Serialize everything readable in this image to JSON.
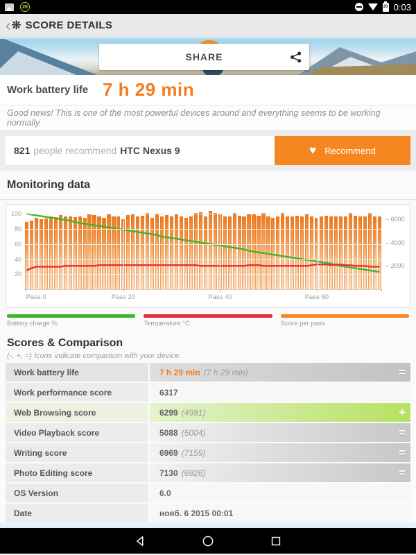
{
  "status_bar": {
    "time": "0:03",
    "battery_badge": "20",
    "battery_level": "20"
  },
  "header": {
    "back_glyph": "‹",
    "logo_glyph": "❋",
    "title": "SCORE DETAILS"
  },
  "banner": {
    "share_label": "SHARE"
  },
  "result": {
    "label": "Work battery life",
    "value": "7 h 29 min"
  },
  "message": "Good news! This is one of the most powerful devices around and everything seems to be working normally.",
  "recommend": {
    "count": "821",
    "middle": "people recommend",
    "device": "HTC Nexus 9",
    "heart_glyph": "♥",
    "button_label": "Recommend"
  },
  "monitoring": {
    "title": "Monitoring data"
  },
  "chart_data": {
    "type": "bar",
    "title": "Monitoring data",
    "x_ticks": [
      {
        "label": "Pass 0",
        "pass": 0
      },
      {
        "label": "Pass 20",
        "pass": 20
      },
      {
        "label": "Pass 40",
        "pass": 40
      },
      {
        "label": "Pass 60",
        "pass": 60
      }
    ],
    "left_axis": {
      "ticks": [
        20,
        40,
        60,
        80,
        100
      ],
      "max": 104
    },
    "right_axis": {
      "ticks": [
        2000,
        4000,
        6000
      ],
      "max": 6700
    },
    "num_passes": 74,
    "series": [
      {
        "name": "Battery charge %",
        "type": "line",
        "axis": "left",
        "color": "#3cb72c",
        "values": [
          100,
          99,
          98,
          97,
          96,
          95,
          94,
          93,
          92,
          91,
          89,
          88,
          87,
          86,
          85,
          84,
          83,
          82,
          81,
          80,
          79,
          78,
          77,
          76,
          75,
          74,
          73,
          72,
          70,
          69,
          68,
          67,
          66,
          65,
          64,
          63,
          62,
          61,
          60,
          59,
          58,
          57,
          56,
          55,
          54,
          53,
          51,
          50,
          49,
          48,
          47,
          46,
          45,
          44,
          43,
          42,
          41,
          40,
          39,
          38,
          37,
          36,
          35,
          34,
          32,
          31,
          30,
          29,
          28,
          27,
          26,
          25,
          24,
          23
        ]
      },
      {
        "name": "Temperature °C",
        "type": "line",
        "axis": "left",
        "color": "#e62f3e",
        "values": [
          25,
          28,
          30,
          30,
          30,
          30,
          30,
          30,
          31,
          31,
          31,
          31,
          31,
          31,
          31,
          32,
          32,
          32,
          32,
          32,
          32,
          32,
          32,
          32,
          32,
          32,
          32,
          32,
          32,
          32,
          32,
          32,
          32,
          32,
          32,
          32,
          31,
          31,
          31,
          31,
          31,
          31,
          31,
          31,
          31,
          31,
          32,
          32,
          32,
          31,
          31,
          31,
          31,
          31,
          31,
          31,
          31,
          31,
          31,
          32,
          33,
          33,
          33,
          32,
          33,
          33,
          32,
          32,
          31,
          31,
          31,
          30,
          30,
          30
        ]
      },
      {
        "name": "Score per pass",
        "type": "bar",
        "axis": "right",
        "color": "#f1801f",
        "values": [
          5750,
          5850,
          6100,
          6000,
          6050,
          6200,
          6150,
          6350,
          6200,
          6250,
          6150,
          6200,
          6100,
          6400,
          6350,
          6200,
          6100,
          6450,
          6250,
          6200,
          6000,
          6350,
          6400,
          6200,
          6300,
          6500,
          6100,
          6400,
          6200,
          6350,
          6250,
          6450,
          6200,
          6100,
          6250,
          6550,
          6600,
          6200,
          6700,
          6500,
          6400,
          6200,
          6250,
          6550,
          6300,
          6200,
          6450,
          6400,
          6300,
          6500,
          6200,
          6100,
          6200,
          6500,
          6250,
          6200,
          6300,
          6250,
          6400,
          6200,
          6100,
          6200,
          6300,
          6250,
          6200,
          6250,
          6200,
          6500,
          6300,
          6250,
          6200,
          6550,
          6250,
          6200
        ]
      }
    ],
    "legend": [
      {
        "label": "Battery charge %",
        "color": "#3cb72c"
      },
      {
        "label": "Temperature °C",
        "color": "#e62f3e"
      },
      {
        "label": "Score per pass",
        "color": "#f6861f"
      }
    ]
  },
  "comparison": {
    "title": "Scores & Comparison",
    "subtitle": "(-, +, =) Icons indicate comparison with your device.",
    "rows": [
      {
        "label": "Work battery life",
        "value": "7 h 29 min",
        "sub": "(7 h 29 min)",
        "compare": "=",
        "row_style": "battery",
        "value_style": "orangeval"
      },
      {
        "label": "Work performance score",
        "value": "6317",
        "sub": "",
        "compare": "",
        "row_style": "plain",
        "value_style": ""
      },
      {
        "label": "Web Browsing score",
        "value": "6299",
        "sub": "(4981)",
        "compare": "+",
        "row_style": "green",
        "value_style": ""
      },
      {
        "label": "Video Playback score",
        "value": "5088",
        "sub": "(5004)",
        "compare": "=",
        "row_style": "gray",
        "value_style": ""
      },
      {
        "label": "Writing score",
        "value": "6969",
        "sub": "(7159)",
        "compare": "=",
        "row_style": "gray",
        "value_style": ""
      },
      {
        "label": "Photo Editing score",
        "value": "7130",
        "sub": "(6926)",
        "compare": "=",
        "row_style": "gray",
        "value_style": ""
      },
      {
        "label": "OS Version",
        "value": "6.0",
        "sub": "",
        "compare": "",
        "row_style": "plain",
        "value_style": ""
      },
      {
        "label": "Date",
        "value": "нояб. 6 2015 00:01",
        "sub": "",
        "compare": "",
        "row_style": "plain",
        "value_style": ""
      }
    ]
  },
  "colors": {
    "accent_orange": "#f47c20",
    "button_orange": "#f6861f",
    "green_line": "#3cb72c",
    "red_line": "#e62f3e",
    "bar_orange": "#f1801f",
    "green_row": "#b6e161"
  }
}
